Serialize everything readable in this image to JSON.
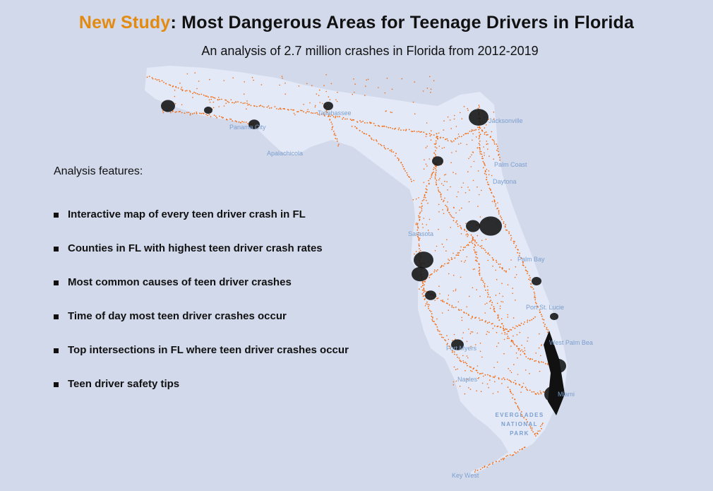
{
  "header": {
    "title_accent": "New Study",
    "title_rest": ": Most Dangerous Areas for Teenage Drivers in Florida",
    "subtitle": "An analysis of 2.7 million crashes in Florida from 2012-2019"
  },
  "features": {
    "heading": "Analysis features:",
    "items": [
      "Interactive map of every teen driver crash in FL",
      "Counties in FL with highest teen driver crash rates",
      "Most common causes of teen driver crashes",
      "Time of day most teen driver crashes occur",
      "Top intersections in FL where teen driver crashes occur",
      "Teen driver safety tips"
    ]
  },
  "map": {
    "place_labels": [
      "Tallahassee",
      "Panama City",
      "Apalachicola",
      "Jacksonville",
      "Palm Coast",
      "Daytona",
      "Sarasota",
      "Palm Bay",
      "Port St. Lucie",
      "West Palm Beach",
      "Miami",
      "Naples",
      "Fort Myers",
      "Key West"
    ],
    "park_label": [
      "EVERGLADES",
      "NATIONAL",
      "PARK"
    ],
    "colors": {
      "land": "#e3e9f6",
      "crash_dot": "#f26a12",
      "dense_cluster": "#111111",
      "label": "#7b9fcf"
    }
  }
}
